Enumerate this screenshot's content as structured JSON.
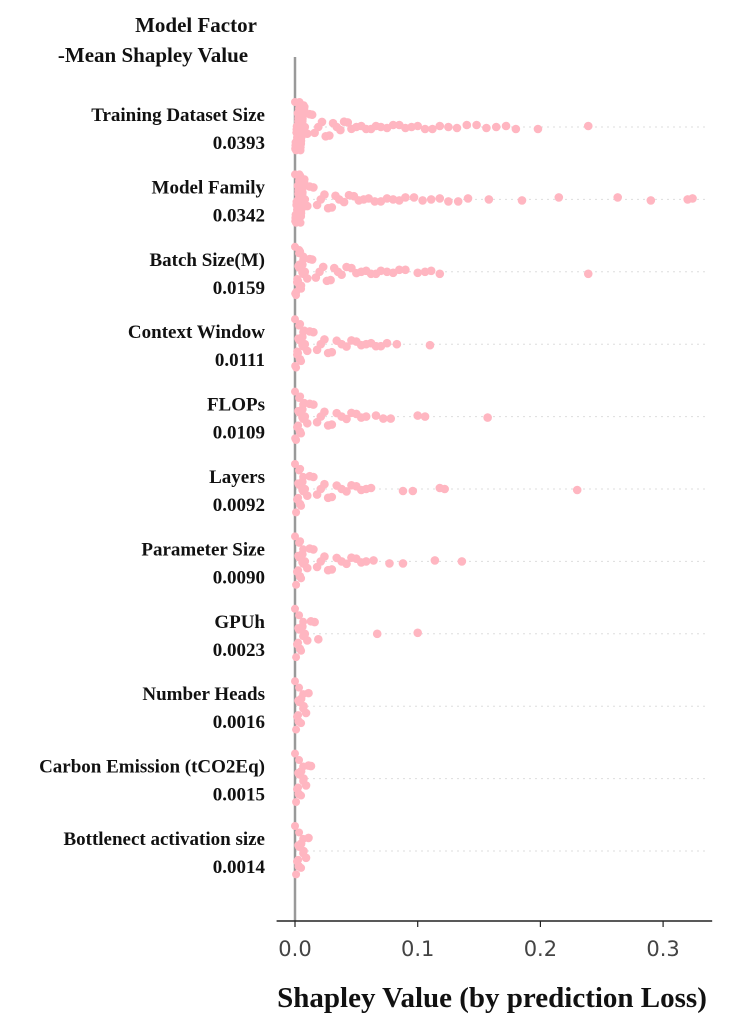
{
  "chart_data": {
    "type": "scatter",
    "subtype": "beeswarm",
    "header_line1": "Model Factor",
    "header_line2": "-Mean Shapley Value",
    "xlabel": "Shapley Value (by prediction Loss)",
    "xlim": [
      -0.015,
      0.34
    ],
    "xticks": [
      "0.0",
      "0.1",
      "0.2",
      "0.3"
    ],
    "xtick_values": [
      0,
      0.1,
      0.2,
      0.3
    ],
    "grid": false,
    "point_color": "#ffb6c1",
    "zero_line_color": "#999999",
    "factors": [
      {
        "name": "Training Dataset Size",
        "mean": "0.0393",
        "points": [
          0.004,
          0.006,
          0.008,
          0.01,
          0.012,
          0.014,
          0.016,
          0.019,
          0.022,
          0.025,
          0.028,
          0.031,
          0.034,
          0.037,
          0.04,
          0.043,
          0.046,
          0.05,
          0.054,
          0.058,
          0.062,
          0.066,
          0.07,
          0.075,
          0.08,
          0.085,
          0.09,
          0.095,
          0.1,
          0.106,
          0.112,
          0.118,
          0.125,
          0.132,
          0.14,
          0.148,
          0.156,
          0.164,
          0.172,
          0.18,
          0.198,
          0.239
        ]
      },
      {
        "name": "Model Family",
        "mean": "0.0342",
        "points": [
          0.004,
          0.006,
          0.008,
          0.01,
          0.012,
          0.015,
          0.018,
          0.021,
          0.024,
          0.027,
          0.03,
          0.033,
          0.036,
          0.04,
          0.044,
          0.048,
          0.052,
          0.056,
          0.06,
          0.065,
          0.07,
          0.075,
          0.08,
          0.085,
          0.09,
          0.097,
          0.104,
          0.111,
          0.118,
          0.125,
          0.133,
          0.141,
          0.158,
          0.185,
          0.215,
          0.263,
          0.29,
          0.32,
          0.324
        ]
      },
      {
        "name": "Batch Size(M)",
        "mean": "0.0159",
        "points": [
          0.004,
          0.006,
          0.008,
          0.01,
          0.012,
          0.014,
          0.017,
          0.02,
          0.023,
          0.026,
          0.029,
          0.032,
          0.035,
          0.038,
          0.042,
          0.046,
          0.05,
          0.054,
          0.058,
          0.062,
          0.066,
          0.07,
          0.075,
          0.08,
          0.085,
          0.09,
          0.1,
          0.106,
          0.111,
          0.118,
          0.239
        ]
      },
      {
        "name": "Context Window",
        "mean": "0.0111",
        "points": [
          0.004,
          0.006,
          0.008,
          0.01,
          0.012,
          0.015,
          0.018,
          0.021,
          0.024,
          0.027,
          0.03,
          0.034,
          0.038,
          0.042,
          0.046,
          0.05,
          0.054,
          0.058,
          0.062,
          0.066,
          0.07,
          0.075,
          0.083,
          0.11
        ]
      },
      {
        "name": "FLOPs",
        "mean": "0.0109",
        "points": [
          0.004,
          0.006,
          0.008,
          0.01,
          0.012,
          0.015,
          0.018,
          0.021,
          0.024,
          0.027,
          0.03,
          0.034,
          0.038,
          0.042,
          0.046,
          0.05,
          0.054,
          0.058,
          0.066,
          0.072,
          0.078,
          0.1,
          0.106,
          0.157
        ]
      },
      {
        "name": "Layers",
        "mean": "0.0092",
        "points": [
          0.004,
          0.006,
          0.008,
          0.01,
          0.012,
          0.015,
          0.018,
          0.021,
          0.024,
          0.027,
          0.03,
          0.034,
          0.038,
          0.042,
          0.046,
          0.05,
          0.054,
          0.058,
          0.062,
          0.088,
          0.096,
          0.118,
          0.122,
          0.23
        ]
      },
      {
        "name": "Parameter Size",
        "mean": "0.0090",
        "points": [
          0.004,
          0.006,
          0.008,
          0.01,
          0.012,
          0.015,
          0.018,
          0.021,
          0.024,
          0.027,
          0.03,
          0.034,
          0.038,
          0.042,
          0.046,
          0.05,
          0.054,
          0.058,
          0.064,
          0.077,
          0.088,
          0.114,
          0.136
        ]
      },
      {
        "name": "GPUh",
        "mean": "0.0023",
        "points": [
          0.004,
          0.006,
          0.008,
          0.01,
          0.013,
          0.016,
          0.019,
          0.067,
          0.1
        ]
      },
      {
        "name": "Number Heads",
        "mean": "0.0016",
        "points": [
          0.003,
          0.005,
          0.007,
          0.009,
          0.011
        ]
      },
      {
        "name": "Carbon Emission (tCO2Eq)",
        "mean": "0.0015",
        "points": [
          0.003,
          0.005,
          0.007,
          0.009,
          0.011,
          0.013
        ]
      },
      {
        "name": "Bottlenect activation size",
        "mean": "0.0014",
        "points": [
          0.003,
          0.005,
          0.007,
          0.009,
          0.011
        ]
      }
    ]
  }
}
